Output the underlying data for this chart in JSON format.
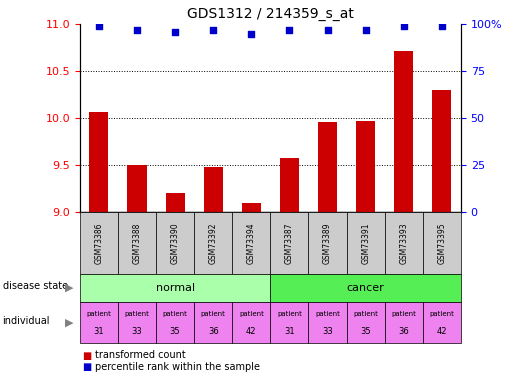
{
  "title": "GDS1312 / 214359_s_at",
  "samples": [
    "GSM73386",
    "GSM73388",
    "GSM73390",
    "GSM73392",
    "GSM73394",
    "GSM73387",
    "GSM73389",
    "GSM73391",
    "GSM73393",
    "GSM73395"
  ],
  "transformed_count": [
    10.06,
    9.5,
    9.2,
    9.48,
    9.1,
    9.58,
    9.96,
    9.97,
    10.72,
    10.3
  ],
  "percentile_rank": [
    99,
    97,
    96,
    97,
    95,
    97,
    97,
    97,
    99,
    99
  ],
  "ylim": [
    9.0,
    11.0
  ],
  "yticks": [
    9.0,
    9.5,
    10.0,
    10.5,
    11.0
  ],
  "right_ylim": [
    0,
    100
  ],
  "right_yticks": [
    0,
    25,
    50,
    75,
    100
  ],
  "bar_color": "#cc0000",
  "dot_color": "#0000cc",
  "normal_color": "#aaffaa",
  "cancer_color": "#55ee55",
  "individual_color": "#ee82ee",
  "sample_bg_color": "#cccccc",
  "individuals": [
    "31",
    "33",
    "35",
    "36",
    "42",
    "31",
    "33",
    "35",
    "36",
    "42"
  ]
}
